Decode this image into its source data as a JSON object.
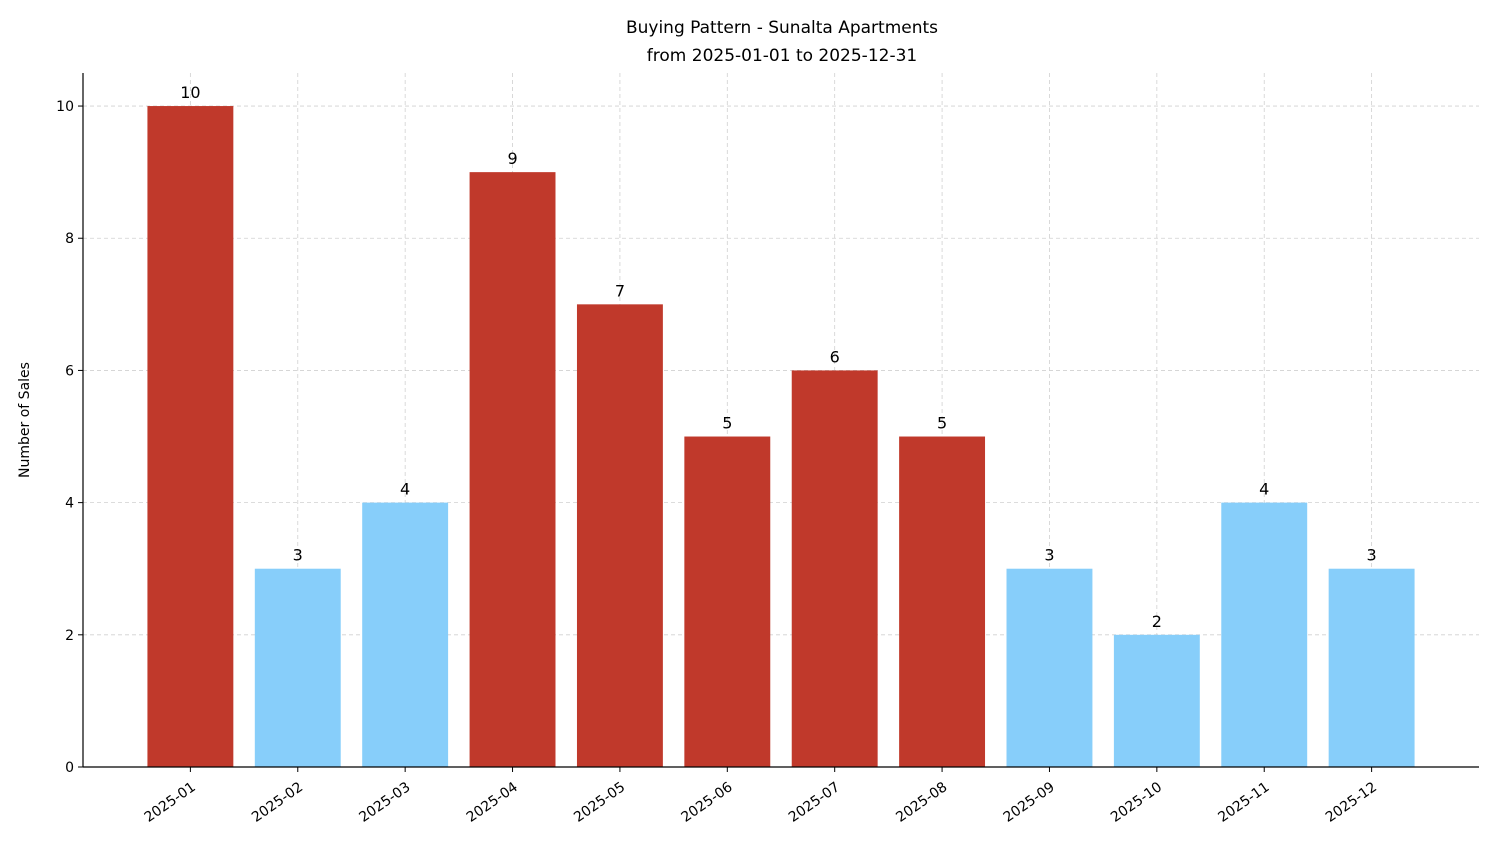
{
  "chart_data": {
    "type": "bar",
    "title": "Buying Pattern - Sunalta Apartments",
    "subtitle": "from 2025-01-01 to 2025-12-31",
    "xlabel": "",
    "ylabel": "Number of Sales",
    "categories": [
      "2025-01",
      "2025-02",
      "2025-03",
      "2025-04",
      "2025-05",
      "2025-06",
      "2025-07",
      "2025-08",
      "2025-09",
      "2025-10",
      "2025-11",
      "2025-12"
    ],
    "values": [
      10,
      3,
      4,
      9,
      7,
      5,
      6,
      5,
      3,
      2,
      4,
      3
    ],
    "bar_colors": [
      "#c0392b",
      "#87cefa",
      "#87cefa",
      "#c0392b",
      "#c0392b",
      "#c0392b",
      "#c0392b",
      "#c0392b",
      "#87cefa",
      "#87cefa",
      "#87cefa",
      "#87cefa"
    ],
    "ylim": [
      0,
      10.5
    ],
    "yticks": [
      0,
      2,
      4,
      6,
      8,
      10
    ],
    "grid": true,
    "data_labels": true
  }
}
